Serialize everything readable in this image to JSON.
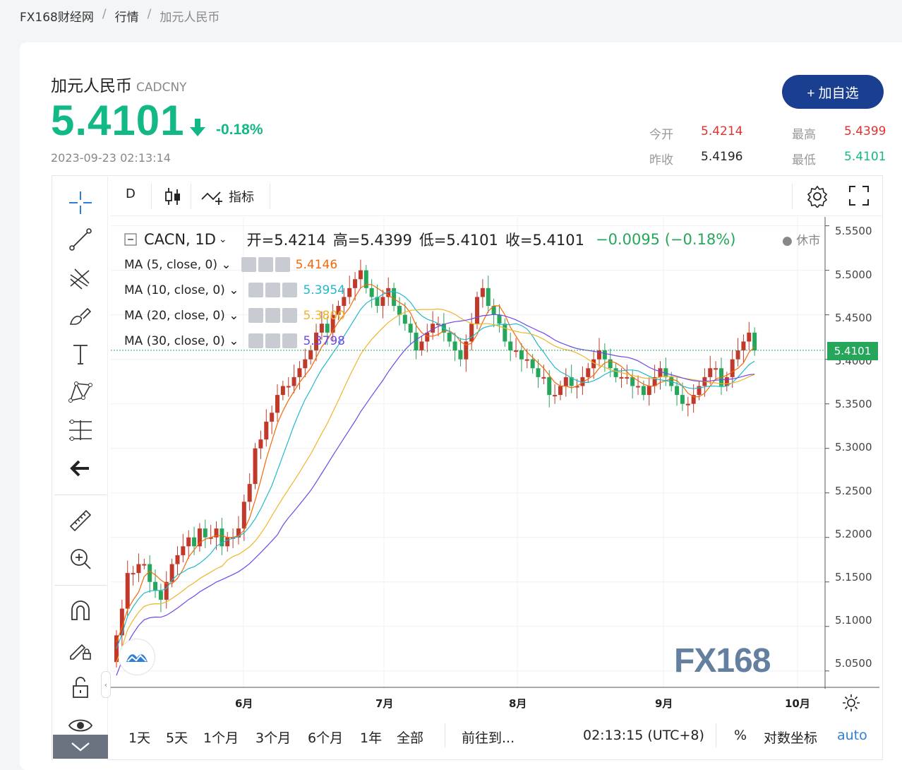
{
  "breadcrumb": {
    "site": "FX168财经网",
    "sep": "/",
    "section": "行情",
    "current": "加元人民币"
  },
  "header": {
    "name": "加元人民币",
    "code": "CADCNY",
    "price": "5.4101",
    "change_pct": "-0.18%",
    "timestamp": "2023-09-23 02:13:14",
    "add_button": "+ 加自选",
    "direction": "down"
  },
  "stats": {
    "open_label": "今开",
    "open": "5.4214",
    "high_label": "最高",
    "high": "5.4399",
    "prev_close_label": "昨收",
    "prev_close": "5.4196",
    "low_label": "最低",
    "low": "5.4101"
  },
  "chart_toolbar": {
    "interval": "D",
    "indicators": "指标"
  },
  "chart_legend": {
    "symbol": "CACN, 1D",
    "open": "开=5.4214",
    "high": "高=5.4399",
    "low": "低=5.4101",
    "close": "收=5.4101",
    "change": "−0.0095 (−0.18%)",
    "market_status": "休市"
  },
  "ma_lines": [
    {
      "label": "MA (5, close, 0)",
      "value": "5.4146",
      "color": "#f76707"
    },
    {
      "label": "MA (10, close, 0)",
      "value": "5.3954",
      "color": "#22b8cf"
    },
    {
      "label": "MA (20, close, 0)",
      "value": "5.3800",
      "color": "#f0b429"
    },
    {
      "label": "MA (30, close, 0)",
      "value": "5.3798",
      "color": "#7048e8"
    }
  ],
  "y_axis": [
    "5.5500",
    "5.5000",
    "5.4500",
    "5.4000",
    "5.3500",
    "5.3000",
    "5.2500",
    "5.2000",
    "5.1500",
    "5.1000",
    "5.0500"
  ],
  "current_price_tag": "5.4101",
  "x_axis": [
    "6月",
    "7月",
    "8月",
    "9月",
    "10月"
  ],
  "watermark": "FX168",
  "bottom_bar": {
    "ranges": [
      "1天",
      "5天",
      "1个月",
      "3个月",
      "6个月",
      "1年",
      "全部"
    ],
    "goto": "前往到...",
    "clock": "02:13:15 (UTC+8)",
    "percent": "%",
    "log": "对数坐标",
    "auto": "auto"
  },
  "colors": {
    "up": "#c0392b",
    "down": "#26a65b",
    "accent": "#1a3f91"
  },
  "chart_data": {
    "type": "candlestick",
    "symbol": "CACN",
    "interval": "1D",
    "x_ticks": [
      "6月",
      "7月",
      "8月",
      "9月",
      "10月"
    ],
    "ylim": [
      5.03,
      5.56
    ],
    "closes": [
      5.09,
      5.12,
      5.16,
      5.16,
      5.17,
      5.17,
      5.15,
      5.14,
      5.13,
      5.15,
      5.17,
      5.18,
      5.19,
      5.2,
      5.19,
      5.21,
      5.2,
      5.2,
      5.21,
      5.19,
      5.2,
      5.2,
      5.21,
      5.24,
      5.26,
      5.3,
      5.31,
      5.33,
      5.34,
      5.36,
      5.37,
      5.37,
      5.38,
      5.39,
      5.4,
      5.41,
      5.43,
      5.44,
      5.43,
      5.45,
      5.46,
      5.47,
      5.48,
      5.49,
      5.5,
      5.48,
      5.47,
      5.46,
      5.47,
      5.48,
      5.46,
      5.45,
      5.44,
      5.43,
      5.41,
      5.42,
      5.43,
      5.44,
      5.44,
      5.43,
      5.42,
      5.41,
      5.4,
      5.42,
      5.44,
      5.47,
      5.48,
      5.46,
      5.45,
      5.44,
      5.42,
      5.41,
      5.41,
      5.4,
      5.4,
      5.39,
      5.38,
      5.38,
      5.36,
      5.36,
      5.37,
      5.38,
      5.37,
      5.37,
      5.38,
      5.39,
      5.4,
      5.41,
      5.4,
      5.39,
      5.38,
      5.38,
      5.38,
      5.37,
      5.37,
      5.36,
      5.37,
      5.38,
      5.39,
      5.38,
      5.37,
      5.36,
      5.35,
      5.35,
      5.36,
      5.37,
      5.38,
      5.39,
      5.39,
      5.37,
      5.38,
      5.4,
      5.41,
      5.42,
      5.43,
      5.41
    ]
  }
}
